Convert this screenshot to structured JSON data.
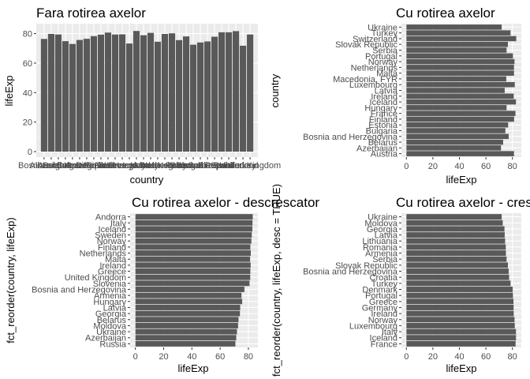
{
  "chart_data": [
    {
      "type": "bar",
      "orientation": "vertical",
      "title": "Fara rotirea axelor",
      "xlabel": "country",
      "ylabel": "lifeExp",
      "ylim": [
        0,
        83
      ],
      "yticks": [
        0,
        20,
        40,
        60,
        80
      ],
      "grid": true,
      "categories": [
        "Albania",
        "Austria",
        "Belgium",
        "Bosnia and Herzegovina",
        "Bulgaria",
        "Croatia",
        "Czech Republic",
        "Denmark",
        "Finland",
        "France",
        "Germany",
        "Greece",
        "Hungary",
        "Iceland",
        "Ireland",
        "Italy",
        "Montenegro",
        "Netherlands",
        "Norway",
        "Poland",
        "Portugal",
        "Romania",
        "Serbia",
        "Slovak Republic",
        "Slovenia",
        "Spain",
        "Sweden",
        "Switzerland",
        "Turkey",
        "United Kingdom"
      ],
      "values": [
        76.4,
        79.8,
        79.4,
        74.9,
        73.0,
        75.7,
        76.5,
        78.3,
        79.3,
        80.7,
        79.4,
        79.5,
        73.3,
        81.8,
        78.9,
        80.5,
        74.5,
        79.8,
        80.2,
        75.6,
        78.1,
        72.5,
        74.0,
        74.7,
        77.9,
        80.9,
        80.9,
        81.7,
        71.8,
        79.4
      ],
      "visible_tick_labels": [
        "Bo",
        "Austria",
        "Belgium",
        "Bulgaria",
        "Finland",
        "Hungary",
        "Ireland",
        "Netherlands",
        "Portugal",
        "Slovenia",
        "Spain",
        "Sweden"
      ]
    },
    {
      "type": "bar",
      "orientation": "horizontal",
      "title": "Cu rotirea axelor",
      "xlabel": "lifeExp",
      "ylabel": "country",
      "xlim": [
        0,
        83
      ],
      "xticks": [
        0,
        20,
        40,
        60,
        80
      ],
      "grid": true,
      "categories": [
        "Austria",
        "Azerbaijan",
        "Belarus",
        "Bosnia and Herzegovina",
        "Bulgaria",
        "Estonia",
        "Finland",
        "France",
        "Hungary",
        "Iceland",
        "Ireland",
        "Latvia",
        "Luxembourg",
        "Macedonia, FYR",
        "Malta",
        "Netherlands",
        "Norway",
        "Portugal",
        "Serbia",
        "Slovak Republic",
        "Switzerland",
        "Turkey",
        "Ukraine"
      ],
      "values": [
        81.2,
        71.4,
        73.0,
        77.2,
        74.7,
        76.8,
        81.3,
        82.3,
        75.6,
        82.7,
        81.0,
        74.2,
        81.8,
        75.4,
        81.2,
        81.2,
        81.6,
        80.4,
        75.6,
        76.6,
        82.9,
        78.6,
        71.9
      ]
    },
    {
      "type": "bar",
      "orientation": "horizontal",
      "title": "Cu rotirea axelor - descrescator",
      "xlabel": "lifeExp",
      "ylabel": "fct_reorder(country, lifeExp)",
      "xlim": [
        0,
        83
      ],
      "xticks": [
        0,
        20,
        40,
        60,
        80
      ],
      "grid": true,
      "categories": [
        "Russia",
        "Azerbaijan",
        "Ukraine",
        "Moldova",
        "Belarus",
        "Georgia",
        "Latvia",
        "Hungary",
        "Armenia",
        "Bosnia and Herzegovina",
        "Slovenia",
        "United Kingdom",
        "Greece",
        "Ireland",
        "Malta",
        "Netherlands",
        "Finland",
        "Norway",
        "Sweden",
        "Iceland",
        "Italy",
        "Andorra"
      ],
      "values": [
        70.8,
        71.4,
        71.9,
        72.7,
        73.0,
        74.0,
        74.2,
        75.6,
        75.1,
        77.2,
        80.8,
        81.3,
        81.4,
        81.6,
        81.2,
        81.7,
        81.4,
        82.1,
        82.4,
        82.8,
        82.9,
        83.1
      ]
    },
    {
      "type": "bar",
      "orientation": "horizontal",
      "title": "Cu rotirea axelor - crescator",
      "xlabel": "lifeExp",
      "ylabel": "fct_reorder(country, lifeExp, desc = TRUE)",
      "xlim": [
        0,
        83
      ],
      "xticks": [
        0,
        20,
        40,
        60,
        80
      ],
      "grid": true,
      "categories": [
        "France",
        "Iceland",
        "Italy",
        "Luxembourg",
        "Norway",
        "Ireland",
        "Germany",
        "Greece",
        "Portugal",
        "Denmark",
        "Turkey",
        "Croatia",
        "Bosnia and Herzegovina",
        "Slovak Republic",
        "Serbia",
        "Armenia",
        "Romania",
        "Lithuania",
        "Latvia",
        "Georgia",
        "Moldova",
        "Ukraine"
      ],
      "values": [
        82.4,
        82.7,
        82.7,
        81.8,
        81.6,
        81.0,
        80.9,
        80.8,
        80.4,
        80.2,
        78.6,
        77.5,
        77.2,
        76.6,
        75.6,
        75.1,
        75.0,
        74.5,
        74.2,
        74.0,
        72.7,
        71.9
      ]
    }
  ]
}
